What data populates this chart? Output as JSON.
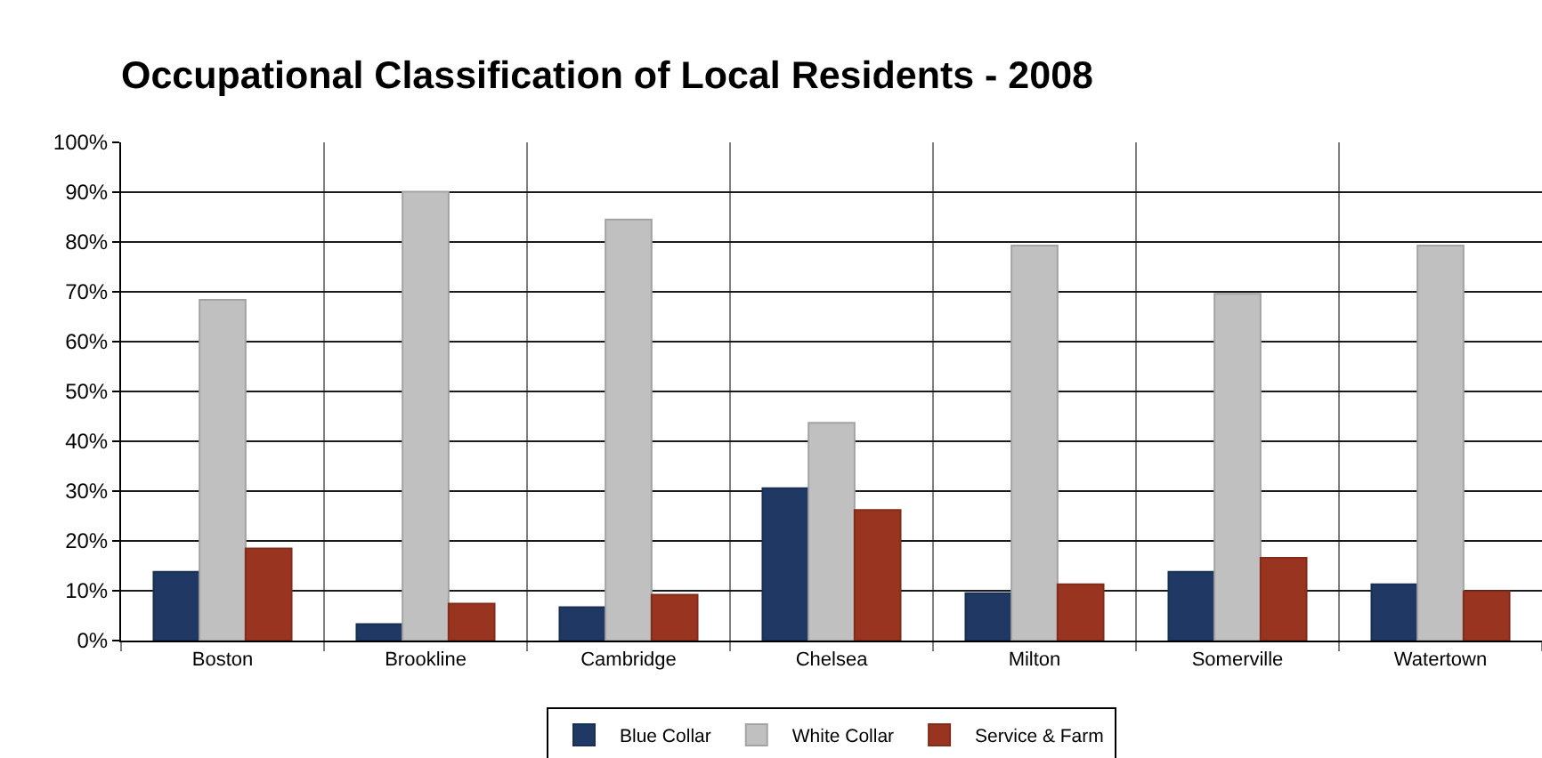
{
  "chart_data": {
    "type": "bar",
    "title": "Occupational Classification of Local Residents - 2008",
    "categories": [
      "Boston",
      "Brookline",
      "Cambridge",
      "Chelsea",
      "Milton",
      "Somerville",
      "Watertown"
    ],
    "series": [
      {
        "name": "Blue Collar",
        "color": "#1f3864",
        "values": [
          13.8,
          3.3,
          6.7,
          30.6,
          9.5,
          13.8,
          11.3
        ]
      },
      {
        "name": "White Collar",
        "color": "#c0c0c0",
        "values": [
          68.4,
          90.1,
          84.5,
          43.7,
          79.3,
          69.6,
          79.3
        ]
      },
      {
        "name": "Service & Farm",
        "color": "#993421",
        "values": [
          18.5,
          7.4,
          9.2,
          26.2,
          11.3,
          16.6,
          9.9
        ]
      }
    ],
    "ylim": [
      0,
      100
    ],
    "yticks": [
      {
        "value": 0,
        "label": "0%"
      },
      {
        "value": 10,
        "label": "10%"
      },
      {
        "value": 20,
        "label": "20%"
      },
      {
        "value": 30,
        "label": "30%"
      },
      {
        "value": 40,
        "label": "40%"
      },
      {
        "value": 50,
        "label": "50%"
      },
      {
        "value": 60,
        "label": "60%"
      },
      {
        "value": 70,
        "label": "70%"
      },
      {
        "value": 80,
        "label": "80%"
      },
      {
        "value": 90,
        "label": "90%"
      },
      {
        "value": 100,
        "label": "100%"
      }
    ],
    "grid": true,
    "legend": "bottom"
  }
}
